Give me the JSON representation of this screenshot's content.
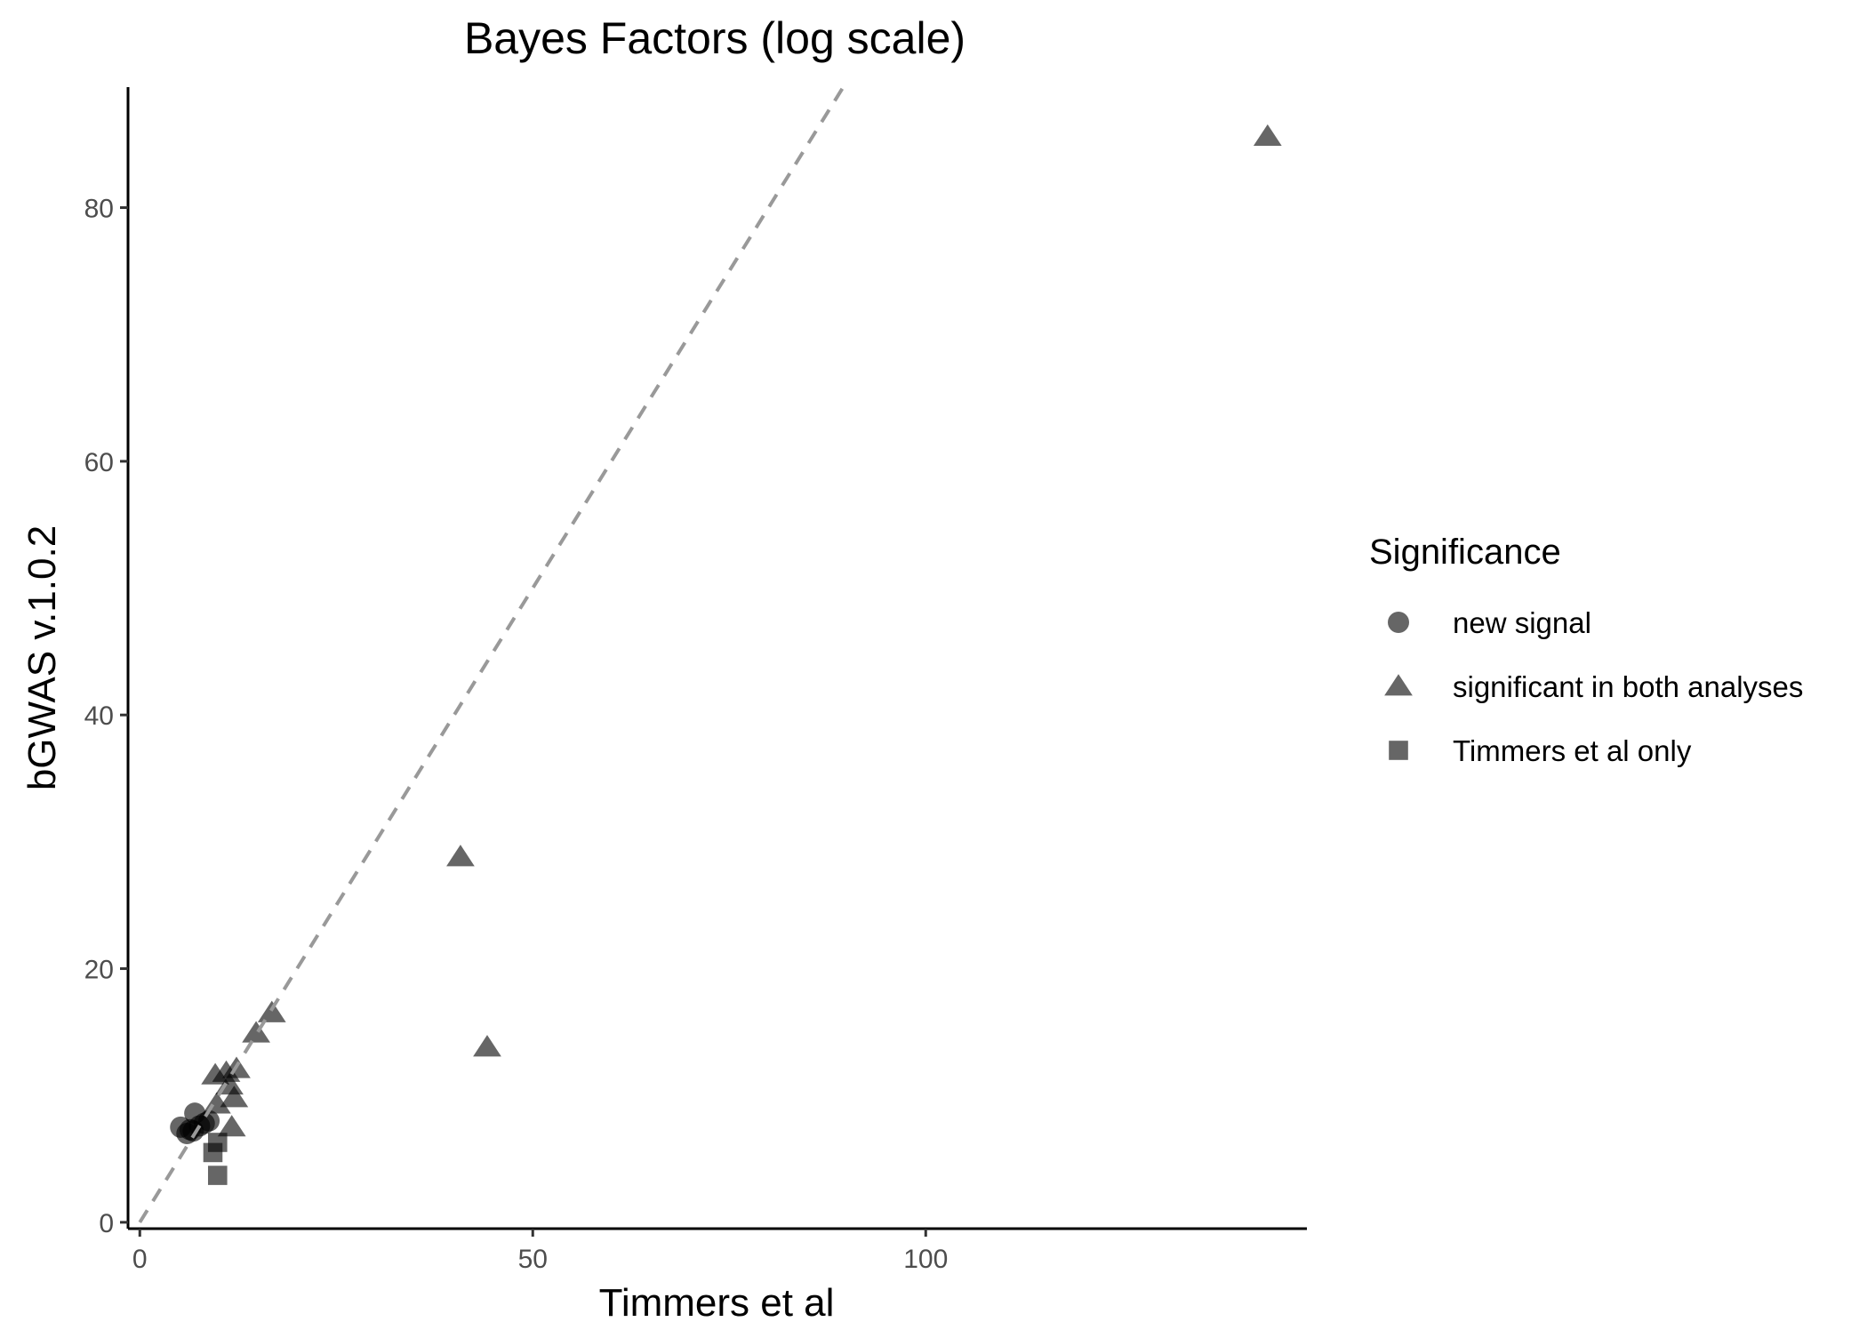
{
  "chart_data": {
    "type": "scatter",
    "title": "Bayes Factors (log scale)",
    "xlabel": "Timmers et al",
    "ylabel": "bGWAS v.1.0.2",
    "xlim": [
      -1.5,
      148.5
    ],
    "ylim": [
      -0.5,
      89.5
    ],
    "x_ticks": [
      0,
      50,
      100
    ],
    "y_ticks": [
      0,
      20,
      40,
      60,
      80
    ],
    "x_tick_labels": [
      "0",
      "50",
      "100"
    ],
    "y_tick_labels": [
      "0",
      "20",
      "40",
      "60",
      "80"
    ],
    "grid": false,
    "reference_line": {
      "type": "identity",
      "style": "dashed",
      "color": "#999999"
    },
    "point_color": "#000000",
    "point_opacity": 0.6,
    "legend": {
      "title": "Significance",
      "placement": "right",
      "entries": [
        {
          "label": "new signal",
          "shape": "circle"
        },
        {
          "label": "significant in both analyses",
          "shape": "triangle"
        },
        {
          "label": "Timmers et al only",
          "shape": "square"
        }
      ]
    },
    "series": [
      {
        "name": "new signal",
        "shape": "circle",
        "points": [
          [
            5.2,
            7.5
          ],
          [
            6.0,
            7.0
          ],
          [
            6.8,
            7.2
          ],
          [
            7.0,
            8.6
          ],
          [
            7.6,
            7.6
          ],
          [
            8.2,
            7.8
          ],
          [
            8.8,
            8.0
          ],
          [
            6.4,
            7.3
          ]
        ]
      },
      {
        "name": "significant in both analyses",
        "shape": "triangle",
        "points": [
          [
            143.5,
            85.6
          ],
          [
            40.8,
            28.8
          ],
          [
            44.2,
            13.8
          ],
          [
            16.8,
            16.5
          ],
          [
            14.8,
            14.9
          ],
          [
            12.3,
            12.1
          ],
          [
            11.0,
            11.8
          ],
          [
            9.6,
            11.6
          ],
          [
            11.4,
            10.8
          ],
          [
            12.0,
            9.8
          ],
          [
            9.8,
            9.3
          ],
          [
            11.7,
            7.5
          ]
        ]
      },
      {
        "name": "Timmers et al only",
        "shape": "square",
        "points": [
          [
            9.3,
            5.5
          ],
          [
            9.9,
            6.3
          ],
          [
            9.9,
            3.7
          ]
        ]
      }
    ]
  }
}
